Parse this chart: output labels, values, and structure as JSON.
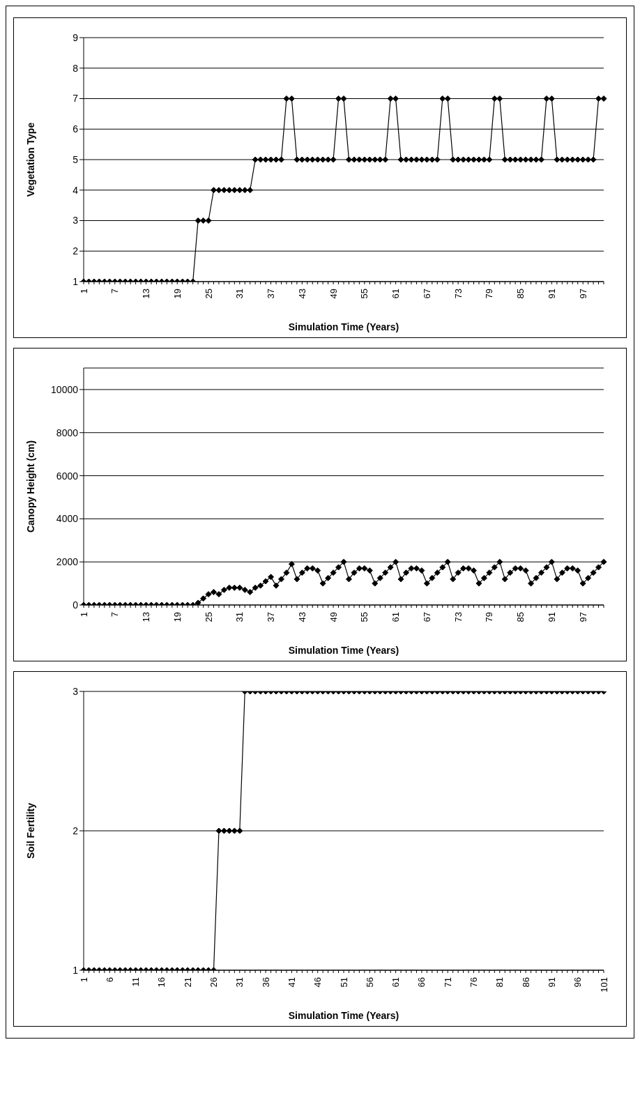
{
  "chart_data": [
    {
      "type": "line",
      "xlabel": "Simulation Time (Years)",
      "ylabel": "Vegetation Type",
      "categories": [
        "1",
        null,
        null,
        null,
        null,
        null,
        "7",
        null,
        null,
        null,
        null,
        null,
        "13",
        null,
        null,
        null,
        null,
        null,
        "19",
        null,
        null,
        null,
        null,
        null,
        "25",
        null,
        null,
        null,
        null,
        null,
        "31",
        null,
        null,
        null,
        null,
        null,
        "37",
        null,
        null,
        null,
        null,
        null,
        "43",
        null,
        null,
        null,
        null,
        null,
        "49",
        null,
        null,
        null,
        null,
        null,
        "55",
        null,
        null,
        null,
        null,
        null,
        "61",
        null,
        null,
        null,
        null,
        null,
        "67",
        null,
        null,
        null,
        null,
        null,
        "73",
        null,
        null,
        null,
        null,
        null,
        "79",
        null,
        null,
        null,
        null,
        null,
        "85",
        null,
        null,
        null,
        null,
        null,
        "91",
        null,
        null,
        null,
        null,
        null,
        "97",
        null,
        null,
        null,
        null
      ],
      "values": [
        1,
        1,
        1,
        1,
        1,
        1,
        1,
        1,
        1,
        1,
        1,
        1,
        1,
        1,
        1,
        1,
        1,
        1,
        1,
        1,
        1,
        1,
        3,
        3,
        3,
        4,
        4,
        4,
        4,
        4,
        4,
        4,
        4,
        5,
        5,
        5,
        5,
        5,
        5,
        7,
        7,
        5,
        5,
        5,
        5,
        5,
        5,
        5,
        5,
        7,
        7,
        5,
        5,
        5,
        5,
        5,
        5,
        5,
        5,
        7,
        7,
        5,
        5,
        5,
        5,
        5,
        5,
        5,
        5,
        7,
        7,
        5,
        5,
        5,
        5,
        5,
        5,
        5,
        5,
        7,
        7,
        5,
        5,
        5,
        5,
        5,
        5,
        5,
        5,
        7,
        7,
        5,
        5,
        5,
        5,
        5,
        5,
        5,
        5,
        7,
        7
      ],
      "color": "#000000",
      "ylim": [
        1,
        9
      ],
      "yticks": [
        1,
        2,
        3,
        4,
        5,
        6,
        7,
        8,
        9
      ],
      "grid": "y",
      "marker": "diamond"
    },
    {
      "type": "line",
      "xlabel": "Simulation Time (Years)",
      "ylabel": "Canopy Height (cm)",
      "categories": [
        "1",
        null,
        null,
        null,
        null,
        null,
        "7",
        null,
        null,
        null,
        null,
        null,
        "13",
        null,
        null,
        null,
        null,
        null,
        "19",
        null,
        null,
        null,
        null,
        null,
        "25",
        null,
        null,
        null,
        null,
        null,
        "31",
        null,
        null,
        null,
        null,
        null,
        "37",
        null,
        null,
        null,
        null,
        null,
        "43",
        null,
        null,
        null,
        null,
        null,
        "49",
        null,
        null,
        null,
        null,
        null,
        "55",
        null,
        null,
        null,
        null,
        null,
        "61",
        null,
        null,
        null,
        null,
        null,
        "67",
        null,
        null,
        null,
        null,
        null,
        "73",
        null,
        null,
        null,
        null,
        null,
        "79",
        null,
        null,
        null,
        null,
        null,
        "85",
        null,
        null,
        null,
        null,
        null,
        "91",
        null,
        null,
        null,
        null,
        null,
        "97",
        null,
        null,
        null,
        null
      ],
      "values": [
        0,
        0,
        0,
        0,
        0,
        0,
        0,
        0,
        0,
        0,
        0,
        0,
        0,
        0,
        0,
        0,
        0,
        0,
        0,
        0,
        0,
        0,
        100,
        300,
        500,
        600,
        500,
        700,
        800,
        800,
        800,
        700,
        600,
        800,
        900,
        1100,
        1300,
        900,
        1200,
        1500,
        1900,
        1200,
        1500,
        1700,
        1700,
        1600,
        1000,
        1250,
        1500,
        1750,
        2000,
        1200,
        1500,
        1700,
        1700,
        1600,
        1000,
        1250,
        1500,
        1750,
        2000,
        1200,
        1500,
        1700,
        1700,
        1600,
        1000,
        1250,
        1500,
        1750,
        2000,
        1200,
        1500,
        1700,
        1700,
        1600,
        1000,
        1250,
        1500,
        1750,
        2000,
        1200,
        1500,
        1700,
        1700,
        1600,
        1000,
        1250,
        1500,
        1750,
        2000,
        1200,
        1500,
        1700,
        1700,
        1600,
        1000,
        1250,
        1500,
        1750,
        2000
      ],
      "color": "#000000",
      "ylim": [
        0,
        11000
      ],
      "yticks": [
        0,
        2000,
        4000,
        6000,
        8000,
        10000
      ],
      "grid": "y",
      "marker": "diamond"
    },
    {
      "type": "line",
      "xlabel": "Simulation Time (Years)",
      "ylabel": "Soil Fertility",
      "categories": [
        "1",
        null,
        null,
        null,
        null,
        "6",
        null,
        null,
        null,
        null,
        "11",
        null,
        null,
        null,
        null,
        "16",
        null,
        null,
        null,
        null,
        "21",
        null,
        null,
        null,
        null,
        "26",
        null,
        null,
        null,
        null,
        "31",
        null,
        null,
        null,
        null,
        "36",
        null,
        null,
        null,
        null,
        "41",
        null,
        null,
        null,
        null,
        "46",
        null,
        null,
        null,
        null,
        "51",
        null,
        null,
        null,
        null,
        "56",
        null,
        null,
        null,
        null,
        "61",
        null,
        null,
        null,
        null,
        "66",
        null,
        null,
        null,
        null,
        "71",
        null,
        null,
        null,
        null,
        "76",
        null,
        null,
        null,
        null,
        "81",
        null,
        null,
        null,
        null,
        "86",
        null,
        null,
        null,
        null,
        "91",
        null,
        null,
        null,
        null,
        "96",
        null,
        null,
        null,
        null,
        "101"
      ],
      "values": [
        1,
        1,
        1,
        1,
        1,
        1,
        1,
        1,
        1,
        1,
        1,
        1,
        1,
        1,
        1,
        1,
        1,
        1,
        1,
        1,
        1,
        1,
        1,
        1,
        1,
        1,
        2,
        2,
        2,
        2,
        2,
        3,
        3,
        3,
        3,
        3,
        3,
        3,
        3,
        3,
        3,
        3,
        3,
        3,
        3,
        3,
        3,
        3,
        3,
        3,
        3,
        3,
        3,
        3,
        3,
        3,
        3,
        3,
        3,
        3,
        3,
        3,
        3,
        3,
        3,
        3,
        3,
        3,
        3,
        3,
        3,
        3,
        3,
        3,
        3,
        3,
        3,
        3,
        3,
        3,
        3,
        3,
        3,
        3,
        3,
        3,
        3,
        3,
        3,
        3,
        3,
        3,
        3,
        3,
        3,
        3,
        3,
        3,
        3,
        3,
        3
      ],
      "color": "#000000",
      "ylim": [
        1,
        3
      ],
      "yticks": [
        1,
        2,
        3
      ],
      "grid": "y",
      "marker": "diamond"
    }
  ]
}
